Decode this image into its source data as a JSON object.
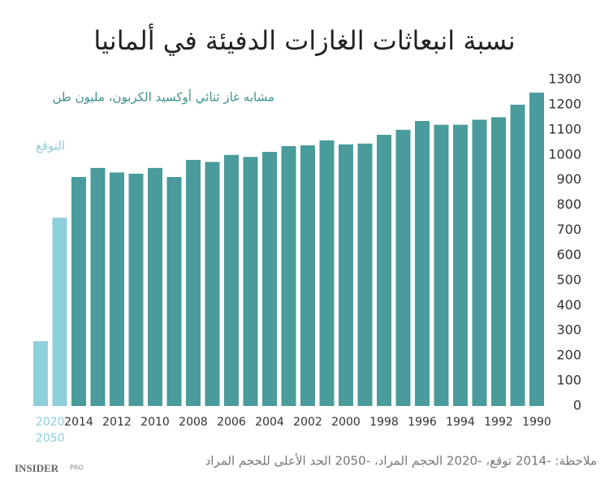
{
  "chart_data": {
    "type": "bar",
    "title": "نسبة انبعاثات الغازات الدفيئة في ألمانيا",
    "categories": [
      "1990",
      null,
      "1992",
      null,
      "1994",
      null,
      "1996",
      null,
      "1998",
      null,
      "2000",
      null,
      "2002",
      null,
      "2004",
      null,
      "2006",
      null,
      "2008",
      null,
      "2010",
      null,
      "2012",
      null,
      "2014",
      "2020",
      "2050"
    ],
    "series": [
      {
        "name": "مشابه غاز ثنائي أوكسيد الكربون، مليون طن",
        "color": "#4a9b9b",
        "values": [
          1248,
          1200,
          1150,
          1140,
          1120,
          1120,
          1135,
          1100,
          1080,
          1045,
          1042,
          1058,
          1038,
          1035,
          1012,
          992,
          1000,
          972,
          980,
          912,
          948,
          925,
          930,
          948,
          912,
          null,
          null
        ]
      },
      {
        "name": "التوقع",
        "color": "#8ecfd9",
        "values": [
          null,
          null,
          null,
          null,
          null,
          null,
          null,
          null,
          null,
          null,
          null,
          null,
          null,
          null,
          null,
          null,
          null,
          null,
          null,
          null,
          null,
          null,
          null,
          null,
          null,
          750,
          258
        ]
      }
    ],
    "ylim": [
      0,
      1300
    ],
    "yticks": [
      0,
      100,
      200,
      300,
      400,
      500,
      600,
      700,
      800,
      900,
      1000,
      1100,
      1200,
      1300
    ],
    "note": "ملاحظة: -2014 توقع، -2020 الحجم المراد، -2050 الحد الأعلى للحجم المراد",
    "logo": "INSIDER",
    "logo_suffix": "PRO"
  }
}
